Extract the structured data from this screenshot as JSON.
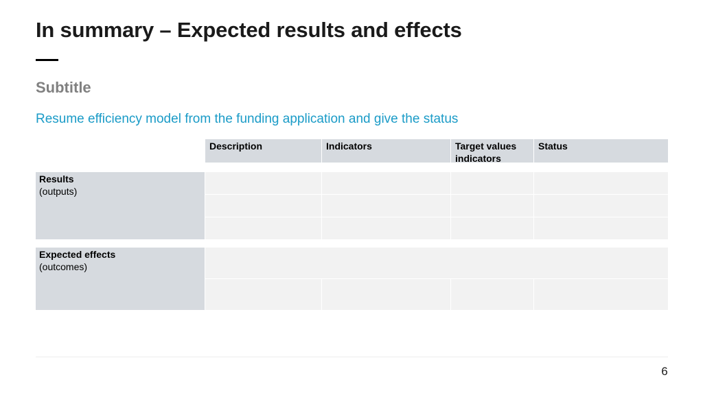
{
  "slide": {
    "title": "In summary – Expected results and effects",
    "subtitle": "Subtitle",
    "intro": "Resume efficiency model from the funding application and give the status",
    "page_number": "6"
  },
  "table": {
    "headers": {
      "description": "Description",
      "indicators": "Indicators",
      "target_values": "Target values indicators",
      "status": "Status"
    },
    "rows": {
      "results": {
        "label": "Results",
        "sublabel": "(outputs)"
      },
      "effects": {
        "label": "Expected effects",
        "sublabel": "(outcomes)"
      }
    }
  },
  "colors": {
    "accent": "#1a9bc7",
    "header_fill": "#d6dadf",
    "row_fill": "#f2f2f2",
    "subtitle": "#808080"
  }
}
